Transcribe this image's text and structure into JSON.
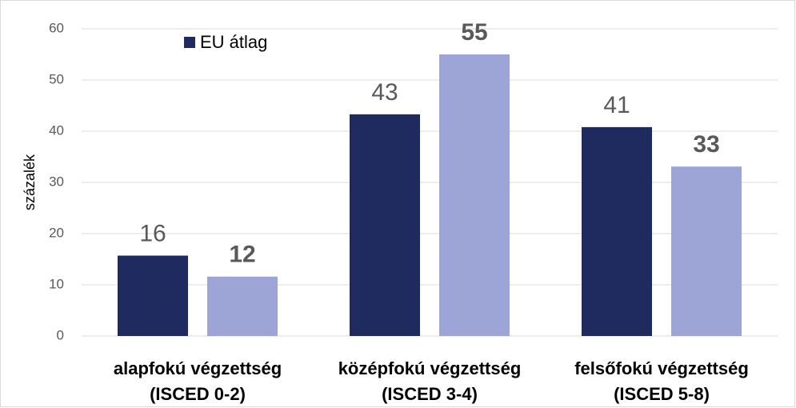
{
  "chart_data": {
    "type": "bar",
    "y_label": "százalék",
    "categories": [
      [
        "alapfokú végzettség",
        "(ISCED 0-2)"
      ],
      [
        "középfokú végzettség",
        "(ISCED 3-4)"
      ],
      [
        "felsőfokú végzettség",
        "(ISCED 5-8)"
      ]
    ],
    "series": [
      {
        "name": "EU átlag",
        "color": "#1f2a5e",
        "values": [
          15.7,
          43.3,
          40.8
        ],
        "value_labels": [
          "16",
          "43",
          "41"
        ]
      },
      {
        "color": "#9ca5d5",
        "values": [
          11.6,
          55.0,
          33.1
        ],
        "value_labels": [
          "12",
          "55",
          "33"
        ]
      }
    ],
    "ylim": [
      0,
      60
    ],
    "yticks": [
      0,
      10,
      20,
      30,
      40,
      50,
      60
    ],
    "grid": true,
    "legend": "top-left"
  }
}
